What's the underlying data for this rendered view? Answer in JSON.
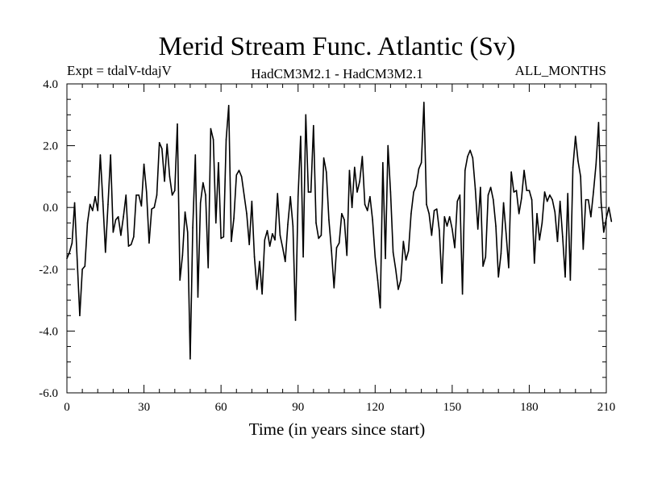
{
  "chart_data": {
    "type": "line",
    "title": "Merid Stream Func. Atlantic (Sv)",
    "subtitle_left": "Expt = tdalV-tdajV",
    "subtitle_center": "HadCM3M2.1 - HadCM3M2.1",
    "subtitle_right": "ALL_MONTHS",
    "xlabel": "Time (in years since start)",
    "ylabel": "",
    "xlim": [
      0,
      210
    ],
    "ylim": [
      -6.0,
      4.0
    ],
    "xticks": [
      0,
      30,
      60,
      90,
      120,
      150,
      180,
      210
    ],
    "xtick_labels": [
      "0",
      "30",
      "60",
      "90",
      "120",
      "150",
      "180",
      "210"
    ],
    "yticks": [
      -6.0,
      -4.0,
      -2.0,
      0.0,
      2.0,
      4.0
    ],
    "ytick_labels": [
      "-6.0",
      "-4.0",
      "-2.0",
      "0.0",
      "2.0",
      "4.0"
    ],
    "grid": false,
    "color": "#000000",
    "series": [
      {
        "x_start": 0,
        "x_step": 1,
        "values": [
          -1.65,
          -1.45,
          -1.15,
          0.15,
          -1.7,
          -3.5,
          -2.0,
          -1.9,
          -0.5,
          0.1,
          -0.1,
          0.35,
          -0.1,
          1.7,
          0.2,
          -1.45,
          0.1,
          1.7,
          -0.8,
          -0.4,
          -0.3,
          -0.9,
          -0.3,
          0.4,
          -1.25,
          -1.2,
          -0.95,
          0.4,
          0.4,
          0.05,
          1.4,
          0.5,
          -1.15,
          -0.05,
          0.0,
          0.4,
          2.1,
          1.9,
          0.85,
          2.05,
          1.0,
          0.4,
          0.55,
          2.7,
          -2.35,
          -1.55,
          -0.15,
          -0.8,
          -4.9,
          -0.65,
          1.7,
          -2.9,
          0.15,
          0.8,
          0.4,
          -1.95,
          2.55,
          2.2,
          -0.5,
          1.45,
          -1.0,
          -0.95,
          2.2,
          3.3,
          -1.1,
          -0.35,
          1.05,
          1.2,
          1.0,
          0.4,
          -0.2,
          -1.2,
          0.2,
          -1.6,
          -2.65,
          -1.75,
          -2.8,
          -1.05,
          -0.75,
          -1.25,
          -0.85,
          -1.05,
          0.45,
          -0.9,
          -1.3,
          -1.75,
          -0.55,
          0.35,
          -0.6,
          -3.65,
          0.35,
          2.3,
          -1.6,
          3.0,
          0.5,
          0.5,
          2.65,
          -0.5,
          -1.0,
          -0.9,
          1.6,
          1.15,
          -0.4,
          -1.4,
          -2.6,
          -1.3,
          -1.15,
          -0.2,
          -0.4,
          -1.55,
          1.2,
          0.0,
          1.3,
          0.5,
          0.85,
          1.65,
          0.1,
          -0.1,
          0.35,
          -0.4,
          -1.6,
          -2.35,
          -3.25,
          1.45,
          -1.65,
          2.0,
          0.5,
          -1.45,
          -2.0,
          -2.65,
          -2.35,
          -1.1,
          -1.7,
          -1.4,
          -0.2,
          0.5,
          0.7,
          1.25,
          1.45,
          3.4,
          0.1,
          -0.2,
          -0.9,
          -0.1,
          -0.05,
          -0.75,
          -2.45,
          -0.3,
          -0.6,
          -0.3,
          -0.7,
          -1.3,
          0.2,
          0.4,
          -2.8,
          1.2,
          1.65,
          1.85,
          1.6,
          0.6,
          -0.7,
          0.65,
          -1.9,
          -1.6,
          0.4,
          0.65,
          0.25,
          -0.6,
          -2.25,
          -1.5,
          0.15,
          -0.85,
          -1.95,
          1.15,
          0.5,
          0.55,
          -0.2,
          0.3,
          1.2,
          0.55,
          0.55,
          0.25,
          -1.8,
          -0.2,
          -1.05,
          -0.5,
          0.5,
          0.2,
          0.4,
          0.25,
          -0.15,
          -1.1,
          0.2,
          -0.95,
          -2.25,
          0.45,
          -2.35,
          1.3,
          2.3,
          1.5,
          1.0,
          -1.35,
          0.25,
          0.25,
          -0.3,
          0.5,
          1.4,
          2.75,
          0.15,
          -0.8,
          -0.35,
          0.0,
          -0.45
        ]
      }
    ]
  }
}
